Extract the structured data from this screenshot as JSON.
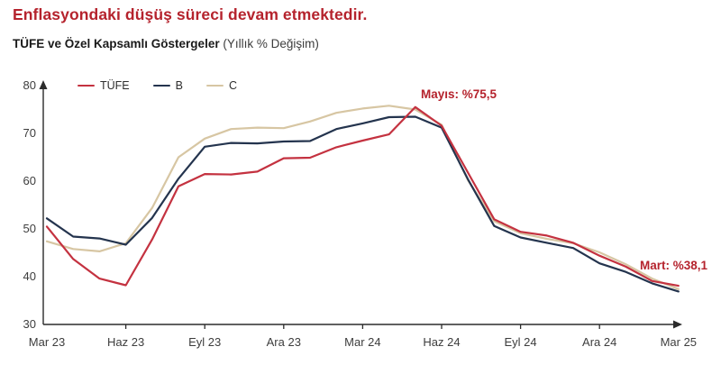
{
  "header": {
    "title": "Enflasyondaki düşüş süreci devam etmektedir.",
    "subtitle_bold": "TÜFE ve Özel Kapsamlı Göstergeler",
    "subtitle_normal": " (Yıllık % Değişim)"
  },
  "colors": {
    "title_red": "#b5232d",
    "annotation_red": "#b5232d",
    "tufe_line": "#c43240",
    "b_line": "#24344e",
    "c_line": "#d7c6a3",
    "axis": "#2b2b2b",
    "tick_text": "#3d3d3d"
  },
  "annotations": {
    "peak": {
      "text": "Mayıs: %75,5"
    },
    "last": {
      "text": "Mart: %38,1"
    }
  },
  "chart_data": {
    "type": "line",
    "x": [
      "Mar 23",
      "Nis 23",
      "May 23",
      "Haz 23",
      "Tem 23",
      "Ağu 23",
      "Eyl 23",
      "Eki 23",
      "Kas 23",
      "Ara 23",
      "Oca 24",
      "Şub 24",
      "Mar 24",
      "Nis 24",
      "May 24",
      "Haz 24",
      "Tem 24",
      "Ağu 24",
      "Eyl 24",
      "Eki 24",
      "Kas 24",
      "Ara 24",
      "Oca 25",
      "Şub 25",
      "Mar 25"
    ],
    "x_tick_labels_shown": [
      "Mar 23",
      "Haz 23",
      "Eyl 23",
      "Ara 23",
      "Mar 24",
      "Haz 24",
      "Eyl 24",
      "Ara 24",
      "Mar 25"
    ],
    "series": [
      {
        "name": "TÜFE",
        "color": "#c43240",
        "values": [
          50.5,
          43.7,
          39.6,
          38.2,
          47.8,
          58.9,
          61.5,
          61.4,
          62.0,
          64.8,
          64.9,
          67.1,
          68.5,
          69.8,
          75.5,
          71.6,
          61.8,
          52.0,
          49.4,
          48.6,
          47.1,
          44.4,
          42.1,
          39.1,
          38.1
        ]
      },
      {
        "name": "B",
        "color": "#24344e",
        "values": [
          52.2,
          48.4,
          48.0,
          46.7,
          52.3,
          60.5,
          67.2,
          68.0,
          67.9,
          68.3,
          68.4,
          70.9,
          72.1,
          73.4,
          73.5,
          71.2,
          60.4,
          50.6,
          48.2,
          47.1,
          46.0,
          42.8,
          41.0,
          38.6,
          36.9
        ]
      },
      {
        "name": "C",
        "color": "#d7c6a3",
        "values": [
          47.4,
          45.8,
          45.3,
          47.0,
          54.4,
          65.0,
          68.9,
          70.9,
          71.2,
          71.1,
          72.5,
          74.3,
          75.2,
          75.8,
          75.0,
          71.8,
          60.2,
          51.6,
          49.1,
          47.9,
          47.0,
          45.1,
          42.6,
          39.6,
          37.4
        ]
      }
    ],
    "ylim": [
      30,
      80
    ],
    "yticks": [
      30,
      40,
      50,
      60,
      70,
      80
    ],
    "ylabel": "",
    "xlabel": "",
    "grid": false,
    "legend_position": "top-left",
    "title": "TÜFE ve Özel Kapsamlı Göstergeler (Yıllık % Değişim)"
  }
}
